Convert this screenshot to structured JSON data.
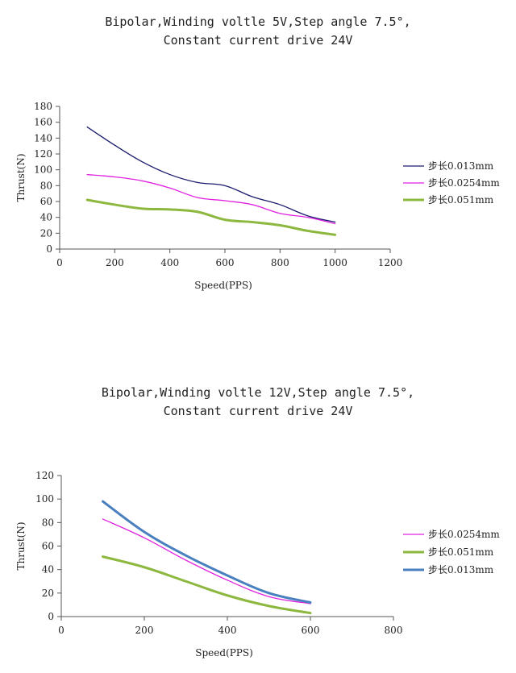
{
  "chart_data": [
    {
      "type": "line",
      "title_lines": [
        "Bipolar,Winding voltle 5V,Step angle 7.5°,",
        "Constant current drive 24V"
      ],
      "xlabel": "Speed(PPS)",
      "ylabel": "Thrust(N)",
      "xlim": [
        0,
        1200
      ],
      "ylim": [
        0,
        180
      ],
      "xticks": [
        0,
        200,
        400,
        600,
        800,
        1000,
        1200
      ],
      "yticks": [
        0,
        20,
        40,
        60,
        80,
        100,
        120,
        140,
        160,
        180
      ],
      "legend_position": "right",
      "series": [
        {
          "name": "步长0.013mm",
          "color": "#1a1a6e",
          "width": 1.3,
          "x": [
            100,
            200,
            300,
            400,
            500,
            600,
            700,
            800,
            900,
            1000
          ],
          "y": [
            154,
            131,
            110,
            94,
            84,
            80,
            66,
            56,
            42,
            34
          ]
        },
        {
          "name": "步长0.0254mm",
          "color": "#e020e0",
          "width": 1.3,
          "x": [
            100,
            200,
            300,
            400,
            500,
            600,
            700,
            800,
            900,
            1000
          ],
          "y": [
            94,
            91,
            86,
            77,
            65,
            61,
            56,
            45,
            40,
            32
          ]
        },
        {
          "name": "步长0.051mm",
          "color": "#8db83f",
          "width": 3,
          "x": [
            100,
            200,
            300,
            400,
            500,
            600,
            700,
            800,
            900,
            1000
          ],
          "y": [
            62,
            56,
            51,
            50,
            47,
            37,
            34,
            30,
            23,
            18
          ]
        }
      ]
    },
    {
      "type": "line",
      "title_lines": [
        "Bipolar,Winding voltle 12V,Step angle 7.5°,",
        "Constant current drive 24V"
      ],
      "xlabel": "Speed(PPS)",
      "ylabel": "Thrust(N)",
      "xlim": [
        0,
        800
      ],
      "ylim": [
        0,
        120
      ],
      "xticks": [
        0,
        200,
        400,
        600,
        800
      ],
      "yticks": [
        0,
        20,
        40,
        60,
        80,
        100,
        120
      ],
      "legend_position": "right",
      "series": [
        {
          "name": "步长0.0254mm",
          "color": "#e020e0",
          "width": 1.3,
          "x": [
            100,
            200,
            300,
            400,
            500,
            600
          ],
          "y": [
            83,
            67,
            48,
            31,
            17,
            11
          ]
        },
        {
          "name": "步长0.051mm",
          "color": "#8db83f",
          "width": 3,
          "x": [
            100,
            200,
            300,
            400,
            500,
            600
          ],
          "y": [
            51,
            42,
            30,
            18,
            9,
            3
          ]
        },
        {
          "name": "步长0.013mm",
          "color": "#4a7fbf",
          "width": 3,
          "x": [
            100,
            200,
            300,
            400,
            500,
            600
          ],
          "y": [
            98,
            72,
            52,
            35,
            20,
            12
          ]
        }
      ]
    }
  ]
}
